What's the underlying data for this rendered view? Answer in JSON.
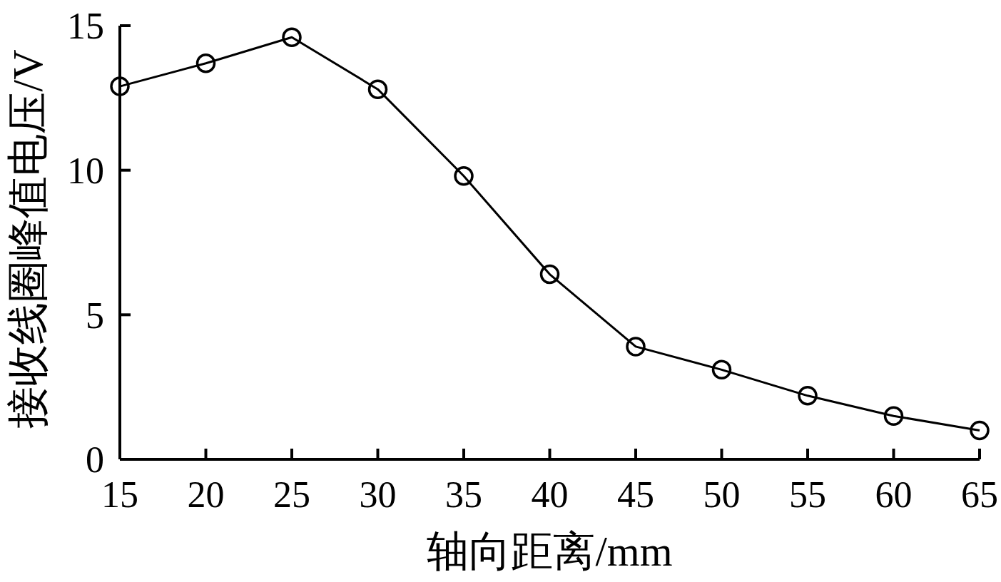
{
  "chart_data": {
    "type": "line",
    "xlabel": "轴向距离/mm",
    "ylabel": "接收线圈峰值电压/V",
    "x": [
      15,
      20,
      25,
      30,
      35,
      40,
      45,
      50,
      55,
      60,
      65
    ],
    "series": [
      {
        "color": "#000000",
        "values": [
          12.9,
          13.7,
          14.6,
          12.8,
          9.8,
          6.4,
          3.9,
          3.1,
          2.2,
          1.5,
          1.0
        ]
      }
    ],
    "xlim": [
      15,
      65
    ],
    "ylim": [
      0,
      15
    ],
    "xticks": [
      15,
      20,
      25,
      30,
      35,
      40,
      45,
      50,
      55,
      60,
      65
    ],
    "yticks": [
      0,
      5,
      10,
      15
    ],
    "grid": false,
    "marker": "circle",
    "line_style": "solid"
  }
}
